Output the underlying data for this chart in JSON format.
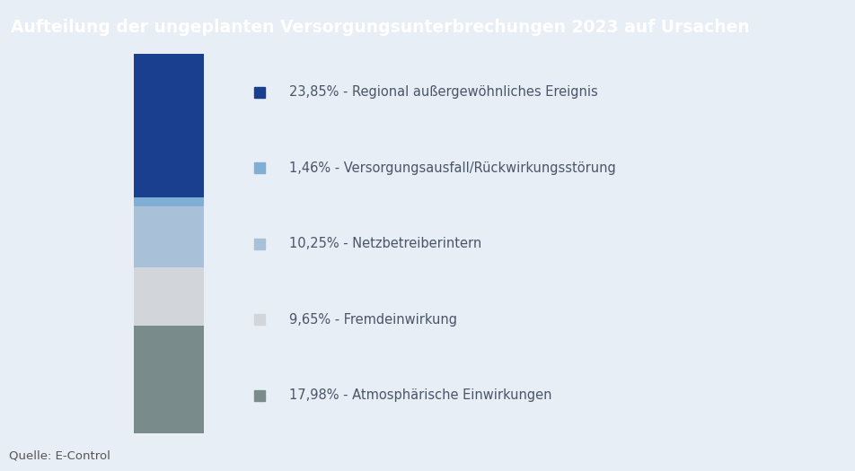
{
  "title": "Aufteilung der ungeplanten Versorgungsunterbrechungen 2023 auf Ursachen",
  "title_bg_color": "#1C5AA0",
  "title_text_color": "#ffffff",
  "background_color": "#E8EEF5",
  "source_label": "Quelle: E-Control",
  "segments": [
    {
      "label": "23,85% - Regional außergewöhnliches Ereignis",
      "value": 23.85,
      "color": "#1A3F8F"
    },
    {
      "label": "1,46% - Versorgungsausfall/Rückwirkungsstörung",
      "value": 1.46,
      "color": "#7FAFD4"
    },
    {
      "label": "10,25% - Netzbetreiberintern",
      "value": 10.25,
      "color": "#A8C0D8"
    },
    {
      "label": "9,65% - Fremdeinwirkung",
      "value": 9.65,
      "color": "#D2D6DA"
    },
    {
      "label": "17,98% - Atmosphärische Einwirkungen",
      "value": 17.98,
      "color": "#7A8B8B"
    }
  ],
  "legend_text_color": "#4A5568",
  "legend_fontsize": 10.5,
  "source_fontsize": 9.5,
  "title_fontsize": 13.5
}
